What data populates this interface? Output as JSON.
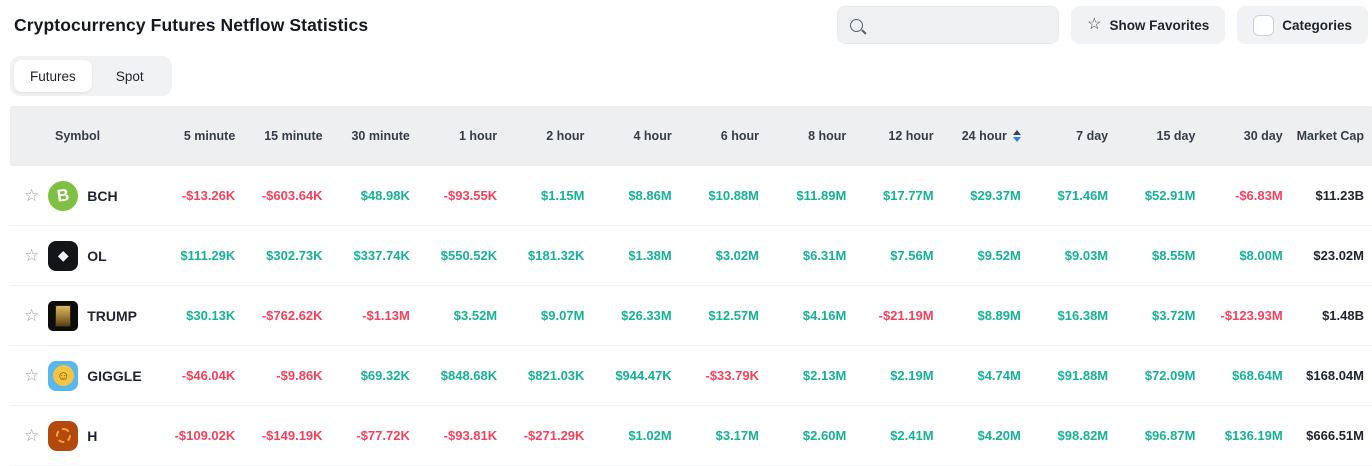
{
  "page": {
    "title": "Cryptocurrency Futures Netflow Statistics"
  },
  "toolbar": {
    "search_placeholder": "",
    "show_favorites_label": "Show Favorites",
    "categories_label": "Categories",
    "categories_checked": false
  },
  "tabs": [
    {
      "label": "Futures",
      "active": true
    },
    {
      "label": "Spot",
      "active": false
    }
  ],
  "colors": {
    "positive": "#16b293",
    "negative": "#f4425c"
  },
  "table": {
    "symbol_header": "Symbol",
    "columns": [
      "5 minute",
      "15 minute",
      "30 minute",
      "1 hour",
      "2 hour",
      "4 hour",
      "6 hour",
      "8 hour",
      "12 hour",
      "24 hour",
      "7 day",
      "15 day",
      "30 day"
    ],
    "sorted_column": "24 hour",
    "sort_direction": "desc",
    "market_cap_header": "Market Cap",
    "rows": [
      {
        "symbol": "BCH",
        "icon": "bch",
        "icon_glyph": "B",
        "favorited": false,
        "values": [
          "-$13.26K",
          "-$603.64K",
          "$48.98K",
          "-$93.55K",
          "$1.15M",
          "$8.86M",
          "$10.88M",
          "$11.89M",
          "$17.77M",
          "$29.37M",
          "$71.46M",
          "$52.91M",
          "-$6.83M"
        ],
        "market_cap": "$11.23B"
      },
      {
        "symbol": "OL",
        "icon": "ol",
        "icon_glyph": "◆",
        "favorited": false,
        "values": [
          "$111.29K",
          "$302.73K",
          "$337.74K",
          "$550.52K",
          "$181.32K",
          "$1.38M",
          "$3.02M",
          "$6.31M",
          "$7.56M",
          "$9.52M",
          "$9.03M",
          "$8.55M",
          "$8.00M"
        ],
        "market_cap": "$23.02M"
      },
      {
        "symbol": "TRUMP",
        "icon": "trump",
        "icon_glyph": "",
        "favorited": false,
        "values": [
          "$30.13K",
          "-$762.62K",
          "-$1.13M",
          "$3.52M",
          "$9.07M",
          "$26.33M",
          "$12.57M",
          "$4.16M",
          "-$21.19M",
          "$8.89M",
          "$16.38M",
          "$3.72M",
          "-$123.93M"
        ],
        "market_cap": "$1.48B"
      },
      {
        "symbol": "GIGGLE",
        "icon": "giggle",
        "icon_glyph": "☺",
        "favorited": false,
        "values": [
          "-$46.04K",
          "-$9.86K",
          "$69.32K",
          "$848.68K",
          "$821.03K",
          "$944.47K",
          "-$33.79K",
          "$2.13M",
          "$2.19M",
          "$4.74M",
          "$91.88M",
          "$72.09M",
          "$68.64M"
        ],
        "market_cap": "$168.04M"
      },
      {
        "symbol": "H",
        "icon": "h",
        "icon_glyph": "",
        "favorited": false,
        "values": [
          "-$109.02K",
          "-$149.19K",
          "-$77.72K",
          "-$93.81K",
          "-$271.29K",
          "$1.02M",
          "$3.17M",
          "$2.60M",
          "$2.41M",
          "$4.20M",
          "$98.82M",
          "$96.87M",
          "$136.19M"
        ],
        "market_cap": "$666.51M"
      }
    ]
  }
}
